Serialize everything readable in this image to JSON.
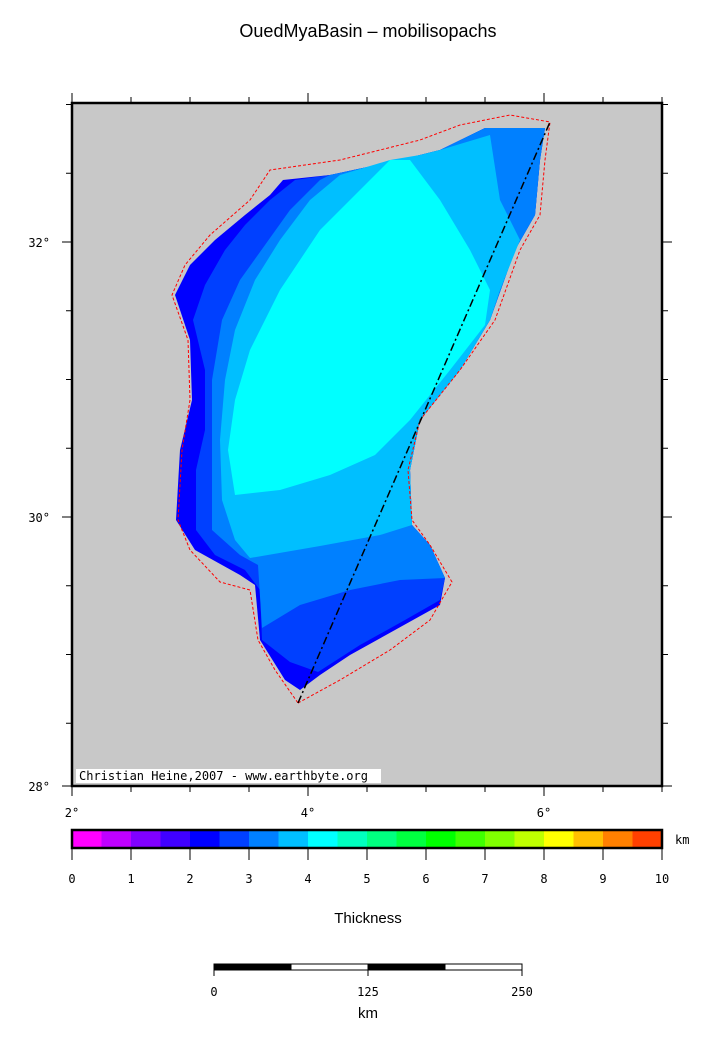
{
  "title": "OuedMyaBasin – mobilisopachs",
  "map": {
    "lon_range": [
      2,
      7
    ],
    "lat_range": [
      28,
      33
    ],
    "lon_labels": [
      {
        "value": 2,
        "label": "2°"
      },
      {
        "value": 4,
        "label": "4°"
      },
      {
        "value": 6,
        "label": "6°"
      }
    ],
    "lat_labels": [
      {
        "value": 28,
        "label": "28°"
      },
      {
        "value": 30,
        "label": "30°"
      },
      {
        "value": 32,
        "label": "32°"
      }
    ],
    "background_color": "#c8c8c8",
    "outline_color": "#ff0000",
    "profile_line_color": "#000000",
    "credit": "Christian Heine,2007 - www.earthbyte.org",
    "thickness_classes_shown_km": [
      2,
      2.5,
      3,
      3.5,
      4
    ]
  },
  "colorbar": {
    "unit": "km",
    "label": "Thickness",
    "min": 0,
    "max": 10,
    "tick_labels": [
      "0",
      "1",
      "2",
      "3",
      "4",
      "5",
      "6",
      "7",
      "8",
      "9",
      "10"
    ],
    "colors": [
      "#ff00ff",
      "#bf00ff",
      "#8000ff",
      "#4000ff",
      "#0000ff",
      "#0040ff",
      "#0080ff",
      "#00bfff",
      "#00ffff",
      "#00ffbf",
      "#00ff80",
      "#00ff40",
      "#00ff00",
      "#40ff00",
      "#80ff00",
      "#bfff00",
      "#ffff00",
      "#ffbf00",
      "#ff8000",
      "#ff4000"
    ]
  },
  "scalebar": {
    "unit": "km",
    "tick_labels": [
      "0",
      "125",
      "250"
    ]
  }
}
